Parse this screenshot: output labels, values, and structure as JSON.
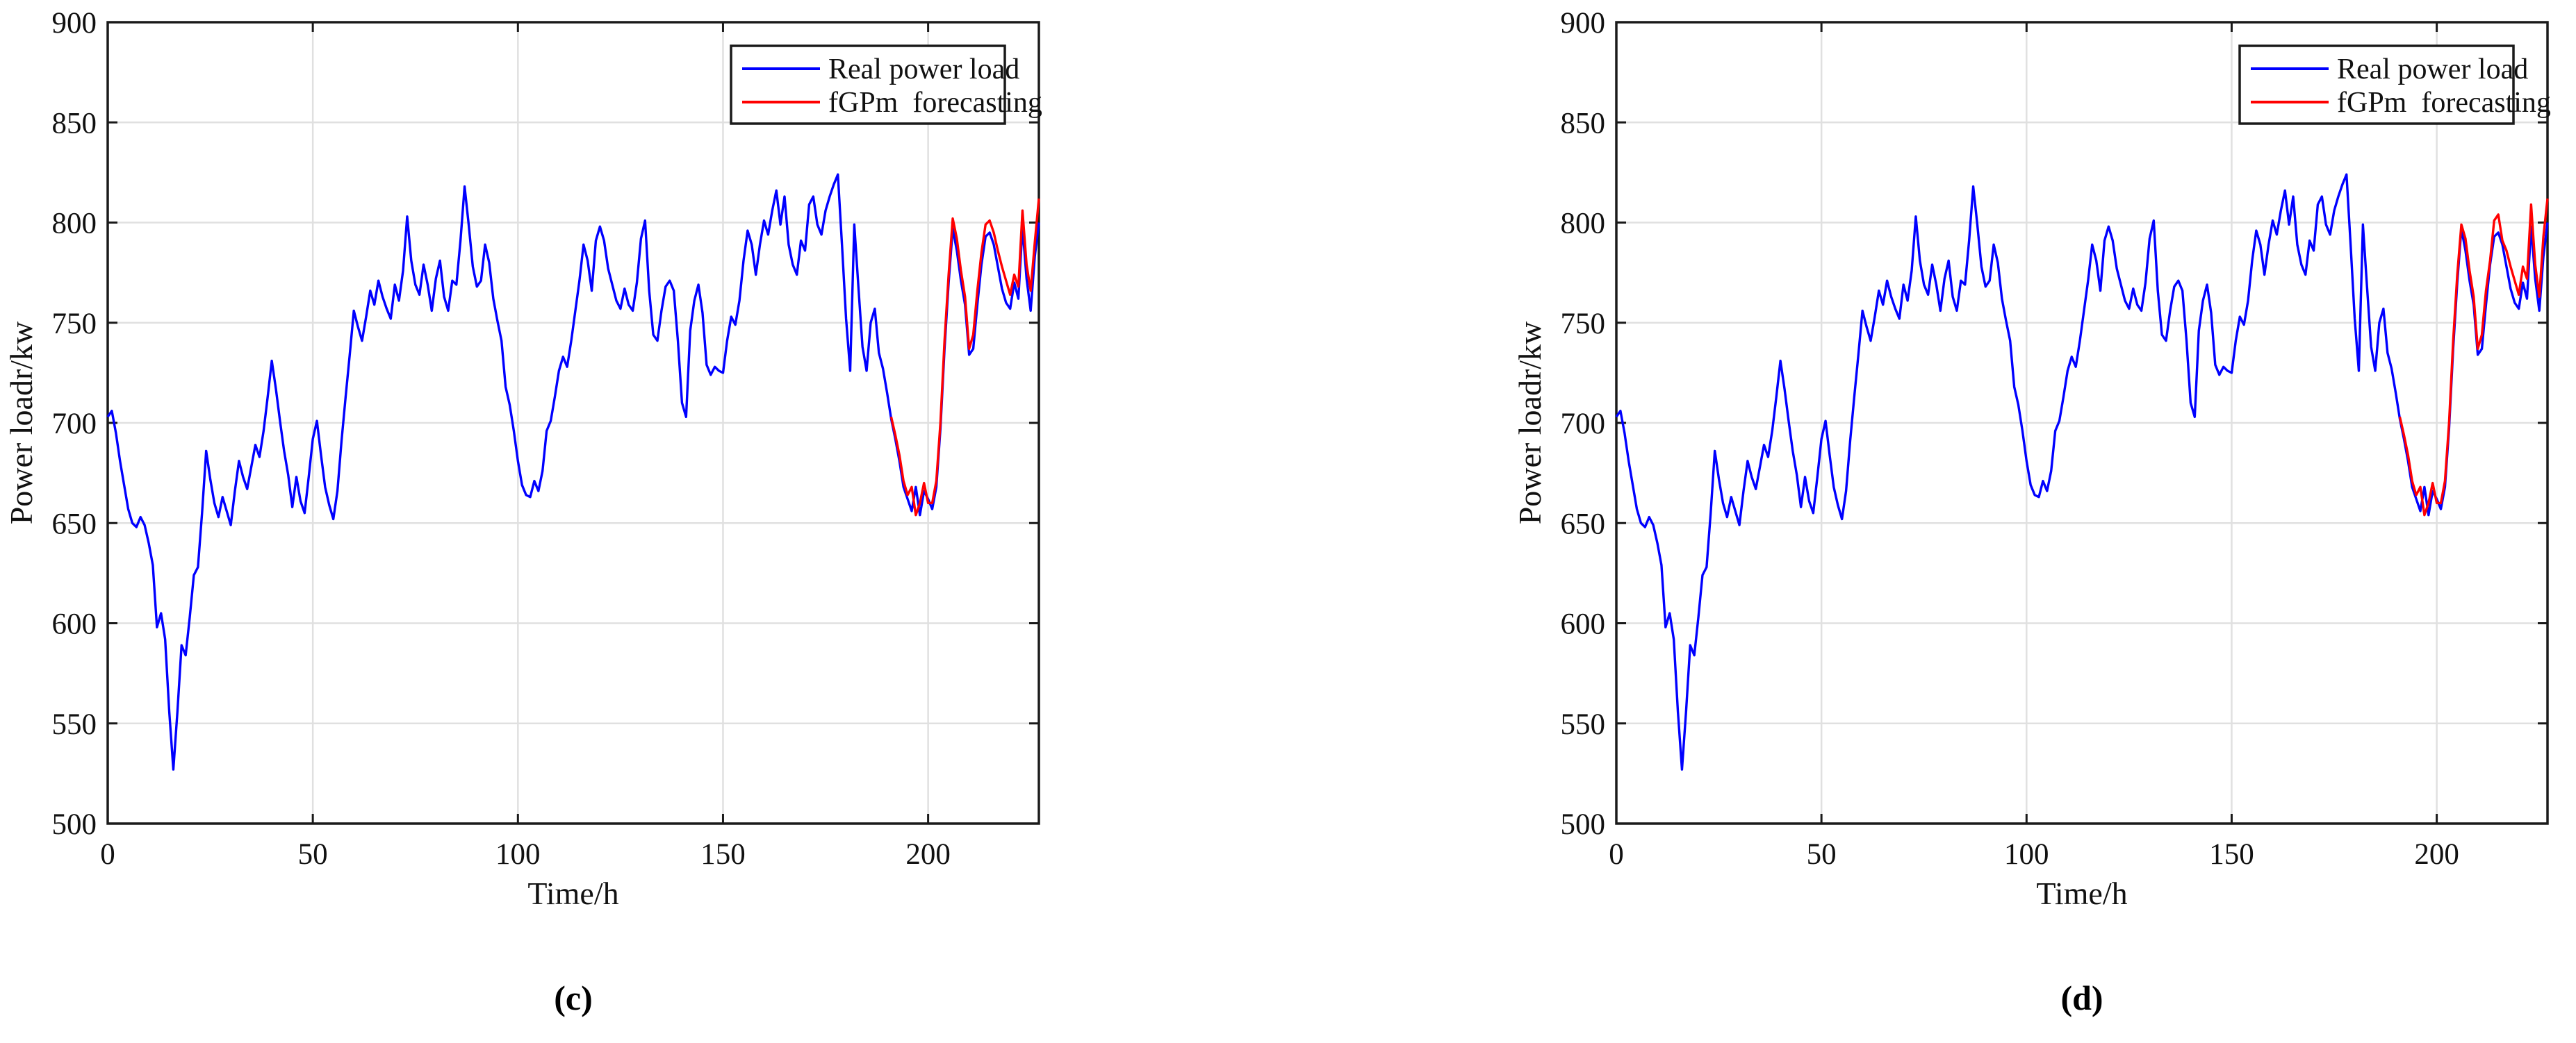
{
  "figure": {
    "background": "#ffffff",
    "description": "Two side-by-side MATLAB-style line charts comparing real power load with fGPm forecasting"
  },
  "chart_data": [
    {
      "type": "line",
      "caption": "(c)",
      "xlabel": "Time/h",
      "ylabel": "Power loadr/kw",
      "xlim": [
        0,
        227
      ],
      "ylim": [
        500,
        900
      ],
      "xticks": [
        0,
        50,
        100,
        150,
        200
      ],
      "yticks": [
        500,
        550,
        600,
        650,
        700,
        750,
        800,
        850,
        900
      ],
      "grid": true,
      "colors": {
        "axis": "#1a1a1a",
        "grid": "#e0e0e0"
      },
      "legend": {
        "position": "top-right",
        "entries": [
          {
            "label": "Real power load",
            "color": "#0000ff"
          },
          {
            "label": "fGPm  forecasting",
            "color": "#ff0000"
          }
        ]
      },
      "series": [
        {
          "name": "Real power load",
          "color": "#0000ff",
          "x_start": 0,
          "x_step": 1,
          "values": [
            703,
            706,
            695,
            681,
            669,
            657,
            650,
            648,
            653,
            649,
            640,
            629,
            598,
            605,
            592,
            556,
            527,
            556,
            589,
            584,
            603,
            624,
            628,
            655,
            686,
            672,
            660,
            653,
            663,
            656,
            649,
            666,
            681,
            673,
            667,
            678,
            689,
            683,
            696,
            713,
            731,
            717,
            701,
            686,
            674,
            658,
            673,
            661,
            655,
            673,
            692,
            701,
            684,
            668,
            659,
            652,
            666,
            691,
            713,
            734,
            756,
            748,
            741,
            753,
            766,
            759,
            771,
            763,
            757,
            752,
            769,
            761,
            776,
            803,
            781,
            769,
            764,
            779,
            769,
            756,
            772,
            781,
            763,
            756,
            771,
            769,
            791,
            818,
            799,
            778,
            768,
            771,
            789,
            780,
            762,
            751,
            741,
            718,
            709,
            696,
            681,
            669,
            664,
            663,
            671,
            666,
            676,
            696,
            701,
            713,
            726,
            733,
            728,
            741,
            756,
            771,
            789,
            781,
            766,
            791,
            798,
            791,
            777,
            769,
            761,
            757,
            767,
            759,
            756,
            770,
            792,
            801,
            766,
            744,
            741,
            756,
            768,
            771,
            766,
            741,
            710,
            703,
            746,
            761,
            769,
            755,
            729,
            724,
            728,
            726,
            725,
            741,
            753,
            749,
            761,
            781,
            796,
            789,
            774,
            789,
            801,
            794,
            806,
            816,
            799,
            813,
            789,
            779,
            774,
            791,
            786,
            809,
            813,
            799,
            794,
            806,
            813,
            819,
            824,
            789,
            752,
            726,
            799,
            768,
            738,
            726,
            750,
            757,
            735,
            727,
            715,
            702,
            692,
            681,
            668,
            662,
            656,
            668,
            654,
            666,
            662,
            657,
            668,
            697,
            737,
            770,
            797,
            786,
            771,
            759,
            734,
            737,
            759,
            779,
            793,
            795,
            789,
            778,
            767,
            760,
            757,
            770,
            762,
            798,
            772,
            756,
            783,
            800
          ]
        },
        {
          "name": "fGPm forecasting",
          "color": "#ff0000",
          "x_start": 191,
          "x_step": 1,
          "values": [
            703,
            694,
            684,
            671,
            664,
            668,
            654,
            660,
            670,
            660,
            660,
            671,
            700,
            741,
            774,
            802,
            792,
            776,
            763,
            737,
            744,
            766,
            785,
            799,
            801,
            795,
            786,
            778,
            771,
            764,
            774,
            768,
            806,
            779,
            766,
            790,
            812
          ]
        }
      ]
    },
    {
      "type": "line",
      "caption": "(d)",
      "xlabel": "Time/h",
      "ylabel": "Power loadr/kw",
      "xlim": [
        0,
        227
      ],
      "ylim": [
        500,
        900
      ],
      "xticks": [
        0,
        50,
        100,
        150,
        200
      ],
      "yticks": [
        500,
        550,
        600,
        650,
        700,
        750,
        800,
        850,
        900
      ],
      "grid": true,
      "colors": {
        "axis": "#1a1a1a",
        "grid": "#e0e0e0"
      },
      "legend": {
        "position": "top-right",
        "entries": [
          {
            "label": "Real power load",
            "color": "#0000ff"
          },
          {
            "label": "fGPm  forecasting",
            "color": "#ff0000"
          }
        ]
      },
      "series": [
        {
          "name": "Real power load",
          "color": "#0000ff",
          "x_start": 0,
          "x_step": 1,
          "values": [
            703,
            706,
            695,
            681,
            669,
            657,
            650,
            648,
            653,
            649,
            640,
            629,
            598,
            605,
            592,
            556,
            527,
            556,
            589,
            584,
            603,
            624,
            628,
            655,
            686,
            672,
            660,
            653,
            663,
            656,
            649,
            666,
            681,
            673,
            667,
            678,
            689,
            683,
            696,
            713,
            731,
            717,
            701,
            686,
            674,
            658,
            673,
            661,
            655,
            673,
            692,
            701,
            684,
            668,
            659,
            652,
            666,
            691,
            713,
            734,
            756,
            748,
            741,
            753,
            766,
            759,
            771,
            763,
            757,
            752,
            769,
            761,
            776,
            803,
            781,
            769,
            764,
            779,
            769,
            756,
            772,
            781,
            763,
            756,
            771,
            769,
            791,
            818,
            799,
            778,
            768,
            771,
            789,
            780,
            762,
            751,
            741,
            718,
            709,
            696,
            681,
            669,
            664,
            663,
            671,
            666,
            676,
            696,
            701,
            713,
            726,
            733,
            728,
            741,
            756,
            771,
            789,
            781,
            766,
            791,
            798,
            791,
            777,
            769,
            761,
            757,
            767,
            759,
            756,
            770,
            792,
            801,
            766,
            744,
            741,
            756,
            768,
            771,
            766,
            741,
            710,
            703,
            746,
            761,
            769,
            755,
            729,
            724,
            728,
            726,
            725,
            741,
            753,
            749,
            761,
            781,
            796,
            789,
            774,
            789,
            801,
            794,
            806,
            816,
            799,
            813,
            789,
            779,
            774,
            791,
            786,
            809,
            813,
            799,
            794,
            806,
            813,
            819,
            824,
            789,
            752,
            726,
            799,
            768,
            738,
            726,
            750,
            757,
            735,
            727,
            715,
            702,
            692,
            681,
            668,
            662,
            656,
            668,
            654,
            666,
            662,
            657,
            668,
            697,
            737,
            770,
            797,
            786,
            771,
            759,
            734,
            737,
            759,
            779,
            793,
            795,
            789,
            778,
            767,
            760,
            757,
            770,
            762,
            798,
            772,
            756,
            783,
            800
          ]
        },
        {
          "name": "fGPm forecasting",
          "color": "#ff0000",
          "x_start": 191,
          "x_step": 1,
          "values": [
            703,
            694,
            684,
            671,
            664,
            668,
            654,
            660,
            670,
            660,
            660,
            671,
            700,
            741,
            774,
            799,
            792,
            776,
            763,
            737,
            744,
            766,
            781,
            801,
            804,
            791,
            786,
            778,
            771,
            764,
            778,
            772,
            809,
            779,
            763,
            793,
            812
          ]
        }
      ]
    }
  ]
}
